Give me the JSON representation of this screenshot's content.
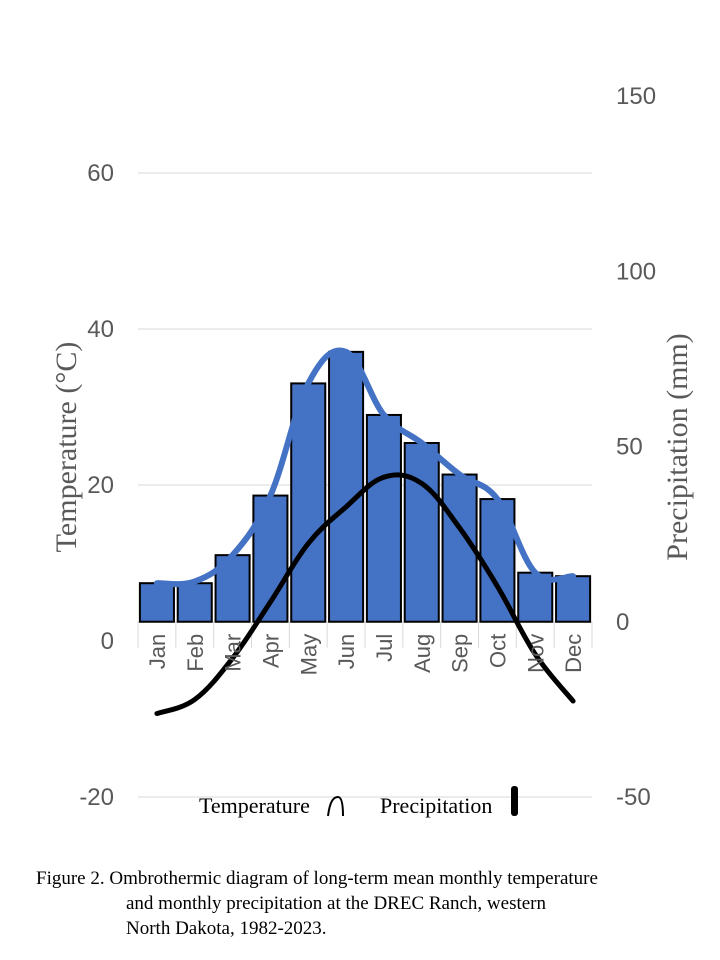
{
  "chart_data": {
    "type": "bar+line",
    "categories": [
      "Jan",
      "Feb",
      "Mar",
      "Apr",
      "May",
      "Jun",
      "Jul",
      "Aug",
      "Sep",
      "Oct",
      "Nov",
      "Dec"
    ],
    "ylabel_left": "Temperature (°C)",
    "ylabel_right": "Precipitation (mm)",
    "ylim_left": [
      -20,
      60
    ],
    "ylim_right": [
      -50,
      150
    ],
    "yticks_left": [
      "60",
      "40",
      "20",
      "0",
      "-20"
    ],
    "yticks_right": [
      "150",
      "100",
      "50",
      "0",
      "-50"
    ],
    "grid": true,
    "legend_position": "bottom",
    "series": [
      {
        "name": "Temperature",
        "type": "line",
        "axis": "left",
        "color": "#000000",
        "values": [
          -9.3,
          -7.5,
          -2.2,
          5.0,
          12.5,
          17.2,
          21.0,
          20.2,
          14.5,
          7.0,
          -1.7,
          -7.7
        ]
      },
      {
        "name": "Precipitation",
        "type": "bar",
        "axis": "right",
        "color": "#4472C4",
        "values": [
          11,
          11,
          19,
          36,
          68,
          77,
          59,
          51,
          42,
          35,
          14,
          13
        ]
      },
      {
        "type": "line",
        "axis": "right",
        "color": "#4472C4",
        "values": [
          11,
          11.5,
          19,
          36,
          68,
          77,
          59,
          51,
          42,
          35,
          14,
          13
        ]
      }
    ]
  },
  "legend": {
    "temperature": "Temperature",
    "precipitation": "Precipitation"
  },
  "caption": {
    "line1": "Figure 2.  Ombrothermic diagram of long-term mean monthly temperature",
    "line2": "and monthly precipitation at the DREC Ranch, western",
    "line3": "North Dakota, 1982-2023."
  }
}
